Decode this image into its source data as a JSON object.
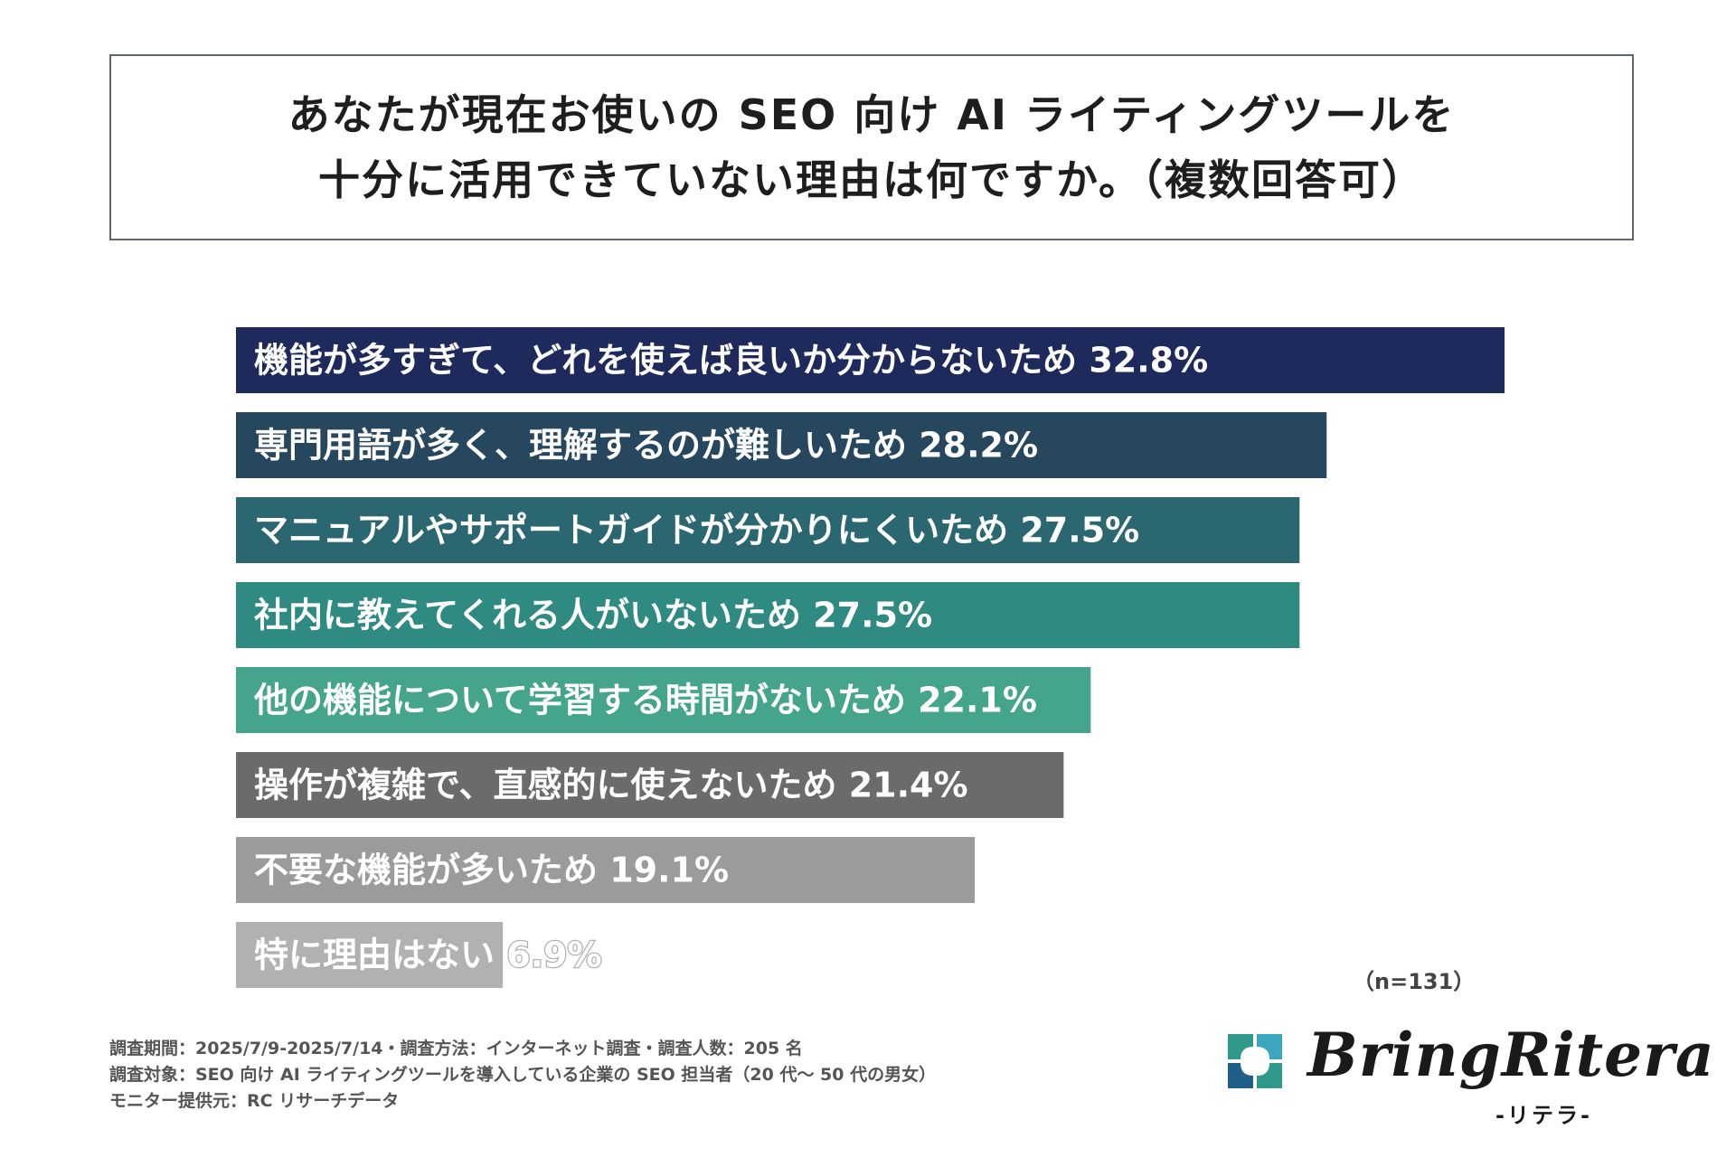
{
  "title_lines": [
    "あなたが現在お使いの SEO 向け AI ライティングツールを",
    "十分に活用できていない理由は何ですか。（複数回答可）"
  ],
  "chart_data": {
    "type": "bar",
    "orientation": "horizontal",
    "categories": [
      "機能が多すぎて、どれを使えば良いか分からないため",
      "専門用語が多く、理解するのが難しいため",
      "マニュアルやサポートガイドが分かりにくいため",
      "社内に教えてくれる人がいないため",
      "他の機能について学習する時間がないため",
      "操作が複雑で、直感的に使えないため",
      "不要な機能が多いため",
      "特に理由はない"
    ],
    "values": [
      32.8,
      28.2,
      27.5,
      27.5,
      22.1,
      21.4,
      19.1,
      6.9
    ],
    "value_labels": [
      "32.8%",
      "28.2%",
      "27.5%",
      "27.5%",
      "22.1%",
      "21.4%",
      "19.1%",
      "6.9%"
    ],
    "unit": "%",
    "colors": [
      "#1f2a5c",
      "#27475e",
      "#2a6770",
      "#2f8a82",
      "#45a48c",
      "#6b6b6b",
      "#9b9b9b",
      "#b1b1b1"
    ],
    "xlim": [
      0,
      32.8
    ],
    "grid": false,
    "legend": "none"
  },
  "sample_size": "（n=131）",
  "footer_lines": [
    "調査期間：2025/7/9-2025/7/14・調査方法：インターネット調査・調査人数：205 名",
    "調査対象：SEO 向け AI ライティングツールを導入している企業の SEO 担当者（20 代〜 50 代の男女）",
    "モニター提供元：RC リサーチデータ"
  ],
  "logo": {
    "name": "BringRitera",
    "sub": "-リテラ-",
    "mark_colors": [
      "#2f9a8a",
      "#1f5f8a",
      "#3aa6c0"
    ]
  }
}
